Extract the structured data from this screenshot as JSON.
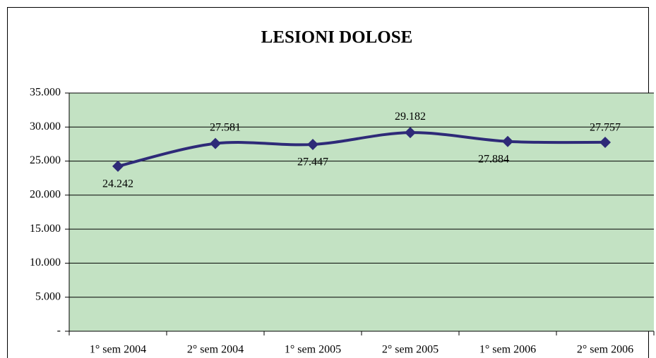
{
  "chart_data": {
    "type": "line",
    "title": "LESIONI DOLOSE",
    "categories": [
      "1° sem 2004",
      "2° sem 2004",
      "1° sem 2005",
      "2° sem 2005",
      "1° sem 2006",
      "2° sem 2006"
    ],
    "values": [
      24242,
      27581,
      27447,
      29182,
      27884,
      27757
    ],
    "value_labels": [
      "24.242",
      "27.581",
      "27.447",
      "29.182",
      "27.884",
      "27.757"
    ],
    "color": "#2e2a78",
    "ylim": [
      0,
      35000
    ],
    "yticks": [
      {
        "value": 0,
        "label": "-"
      },
      {
        "value": 5000,
        "label": "5.000"
      },
      {
        "value": 10000,
        "label": "10.000"
      },
      {
        "value": 15000,
        "label": "15.000"
      },
      {
        "value": 20000,
        "label": "20.000"
      },
      {
        "value": 25000,
        "label": "25.000"
      },
      {
        "value": 30000,
        "label": "30.000"
      },
      {
        "value": 35000,
        "label": "35.000"
      }
    ],
    "grid": true
  }
}
